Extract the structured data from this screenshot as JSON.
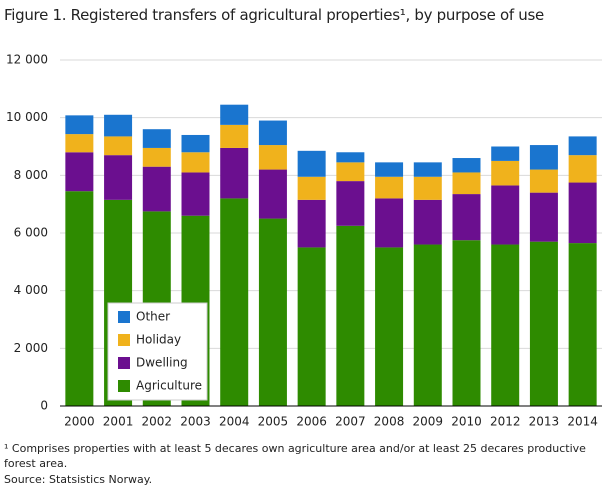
{
  "chart_data": {
    "type": "stacked-bar",
    "title": "Figure 1. Registered transfers of agricultural properties¹, by purpose of use",
    "footnote": "¹ Comprises properties with at least 5 decares own agriculture area and/or at least 25 decares productive forest area.",
    "source": "Source: Statsistics Norway.",
    "categories": [
      "2000",
      "2001",
      "2002",
      "2003",
      "2004",
      "2005",
      "2006",
      "2007",
      "2008",
      "2009",
      "2010",
      "2012",
      "2013",
      "2014"
    ],
    "series": [
      {
        "name": "Agriculture",
        "color": "#2e8b00",
        "values": [
          7450,
          7150,
          6750,
          6600,
          7200,
          6500,
          5500,
          6250,
          5500,
          5600,
          5750,
          5600,
          5700,
          5650
        ]
      },
      {
        "name": "Dwelling",
        "color": "#6b0f8f",
        "values": [
          1350,
          1550,
          1550,
          1500,
          1750,
          1700,
          1650,
          1550,
          1700,
          1550,
          1600,
          2050,
          1700,
          2100
        ]
      },
      {
        "name": "Holiday",
        "color": "#f0b21c",
        "values": [
          630,
          650,
          650,
          700,
          800,
          850,
          800,
          650,
          750,
          800,
          750,
          850,
          800,
          950
        ]
      },
      {
        "name": "Other",
        "color": "#1a75cf",
        "values": [
          650,
          750,
          650,
          600,
          700,
          850,
          900,
          350,
          500,
          500,
          500,
          500,
          850,
          650
        ]
      }
    ],
    "ylim": [
      0,
      12000
    ],
    "yticks": [
      0,
      {
        "value": 2000,
        "label": "2 000"
      },
      {
        "value": 4000,
        "label": "4 000"
      },
      {
        "value": 6000,
        "label": "6 000"
      },
      {
        "value": 8000,
        "label": "8 000"
      },
      {
        "value": 10000,
        "label": "10 000"
      },
      {
        "value": 12000,
        "label": "12 000"
      }
    ],
    "grid": true,
    "legend": "lower-left"
  }
}
